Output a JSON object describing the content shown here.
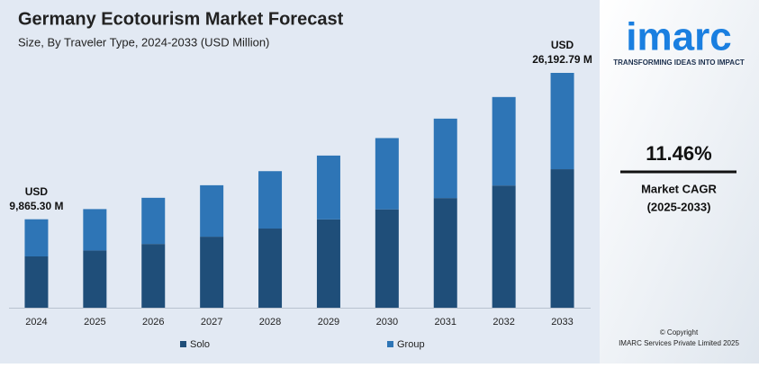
{
  "chart_data": {
    "type": "stacked_bar",
    "title": "Germany Ecotourism Market Forecast",
    "subtitle": "Size, By Traveler Type, 2024-2033 (USD Million)",
    "categories": [
      "2024",
      "2025",
      "2026",
      "2027",
      "2028",
      "2029",
      "2030",
      "2031",
      "2032",
      "2033"
    ],
    "series": [
      {
        "name": "Solo",
        "color": "#1f4e79",
        "values": [
          5720,
          6380,
          7110,
          7920,
          8830,
          9850,
          10970,
          12230,
          13630,
          15450
        ]
      },
      {
        "name": "Group",
        "color": "#2e75b6",
        "values": [
          4145.3,
          4620,
          5150,
          5740,
          6400,
          7120,
          7950,
          8860,
          9870,
          10742.79
        ]
      }
    ],
    "annotations": [
      {
        "category": "2024",
        "text": [
          "USD",
          "9,865.30 M"
        ]
      },
      {
        "category": "2033",
        "text": [
          "USD",
          "26,192.79 M"
        ]
      }
    ],
    "legend": "bottom"
  },
  "sidebar": {
    "logo": "imarc",
    "tagline": "TRANSFORMING IDEAS INTO IMPACT",
    "cagr": "11.46%",
    "cagr_label": "Market CAGR",
    "cagr_period": "(2025-2033)",
    "copyright": "© Copyright",
    "company": "IMARC Services Private Limited 2025"
  }
}
